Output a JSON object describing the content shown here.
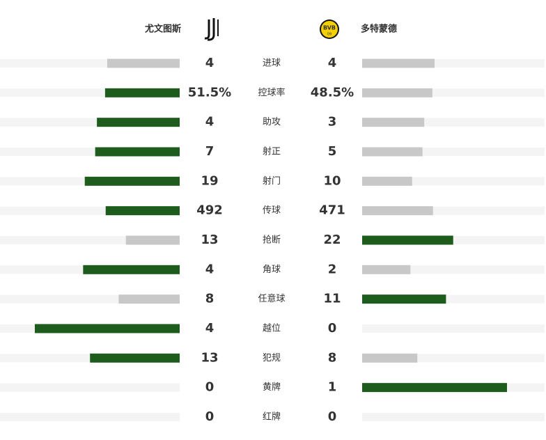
{
  "chart_data": {
    "type": "diverging-bar",
    "categories": [
      "进球",
      "控球率",
      "助攻",
      "射正",
      "射门",
      "传球",
      "抢断",
      "角球",
      "任意球",
      "越位",
      "犯规",
      "黄牌",
      "红牌"
    ],
    "series": [
      {
        "name": "尤文图斯",
        "values": [
          4,
          51.5,
          4,
          7,
          19,
          492,
          13,
          4,
          8,
          4,
          13,
          0,
          0
        ],
        "value_labels": [
          "4",
          "51.5%",
          "4",
          "7",
          "19",
          "492",
          "13",
          "4",
          "8",
          "4",
          "13",
          "0",
          "0"
        ]
      },
      {
        "name": "多特蒙德",
        "values": [
          4,
          48.5,
          3,
          5,
          10,
          471,
          22,
          2,
          11,
          0,
          8,
          1,
          0
        ],
        "value_labels": [
          "4",
          "48.5%",
          "3",
          "5",
          "10",
          "471",
          "22",
          "2",
          "11",
          "0",
          "8",
          "1",
          "0"
        ]
      }
    ],
    "color": "#c8c8c8",
    "highlight_color": "#1e5c1e",
    "track_color": "#f4f4f4"
  }
}
